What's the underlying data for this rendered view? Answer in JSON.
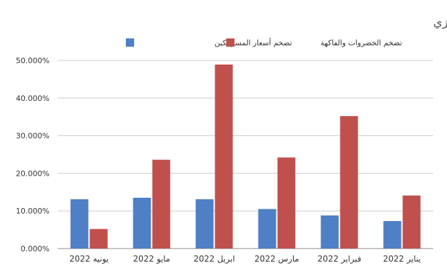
{
  "chart_data": {
    "type": "bar",
    "title": "مؤشرات التضخم منذ بداية العام - المصد: بيانات البنك المركزي",
    "categories": [
      "يونيه 2022",
      "مايو 2022",
      "ابريل 2022",
      "مارس 2022",
      "فبراير 2022",
      "يناير 2022"
    ],
    "series": [
      {
        "name": "تضخم أسعار المستهلكين",
        "color": "#4f7fc4",
        "values": [
          13.1,
          13.5,
          13.1,
          10.5,
          8.8,
          7.3
        ]
      },
      {
        "name": "تضخم الخضروات والفاكهة",
        "color": "#c0504d",
        "values": [
          5.2,
          23.6,
          48.9,
          24.2,
          35.2,
          14.1
        ]
      }
    ],
    "yticks": [
      "0.000%",
      "10.000%",
      "20.000%",
      "30.000%",
      "40.000%",
      "50.000%"
    ],
    "ylim": [
      0,
      50
    ],
    "grid": true,
    "legend_position": "top"
  }
}
